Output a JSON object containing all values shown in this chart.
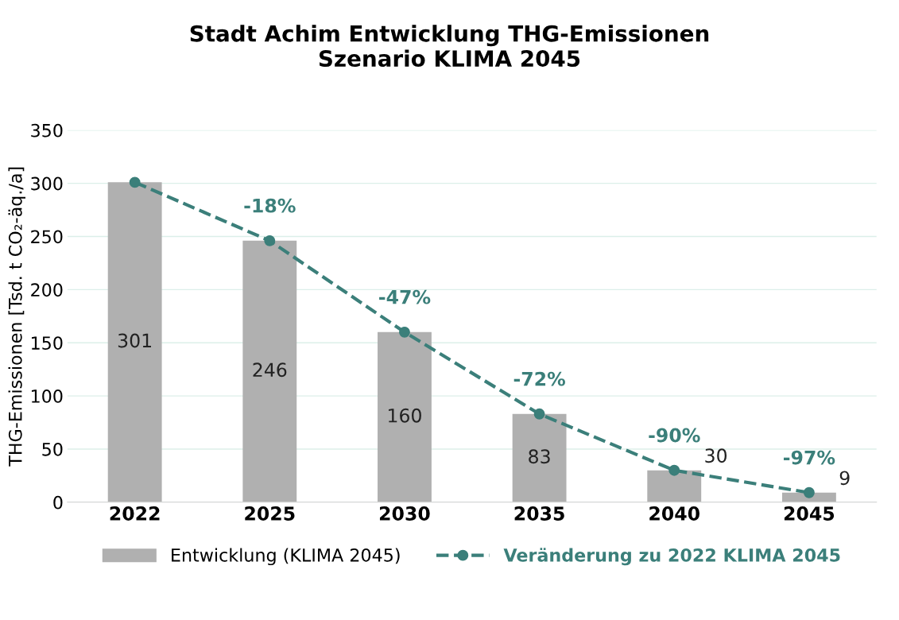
{
  "chart_data": {
    "type": "bar",
    "title": "Stadt Achim Entwicklung THG-Emissionen\nSzenario KLIMA 2045",
    "ylabel": "THG-Emissionen [Tsd. t CO₂-äq./a]",
    "categories": [
      "2022",
      "2025",
      "2030",
      "2035",
      "2040",
      "2045"
    ],
    "series": [
      {
        "name": "Entwicklung (KLIMA 2045)",
        "color": "#b0b0b0",
        "values": [
          301,
          246,
          160,
          83,
          30,
          9
        ],
        "value_labels": [
          "301",
          "246",
          "160",
          "83",
          "30",
          "9"
        ]
      },
      {
        "name": "Veränderung zu 2022 KLIMA 2045",
        "type": "line",
        "color": "#3b7f7a",
        "values": [
          301,
          246,
          160,
          83,
          30,
          9
        ],
        "marker": "circle",
        "line_style": "dashed"
      }
    ],
    "annotations": [
      {
        "text": "-18%",
        "x": "2025",
        "y": 246
      },
      {
        "text": "-47%",
        "x": "2030",
        "y": 160
      },
      {
        "text": "-72%",
        "x": "2035",
        "y": 83
      },
      {
        "text": "-90%",
        "x": "2040",
        "y": 30
      },
      {
        "text": "-97%",
        "x": "2045",
        "y": 9
      }
    ],
    "ylim": [
      0,
      350
    ],
    "yticks": [
      0,
      50,
      100,
      150,
      200,
      250,
      300,
      350
    ],
    "grid": "y",
    "legend": "bottom"
  }
}
